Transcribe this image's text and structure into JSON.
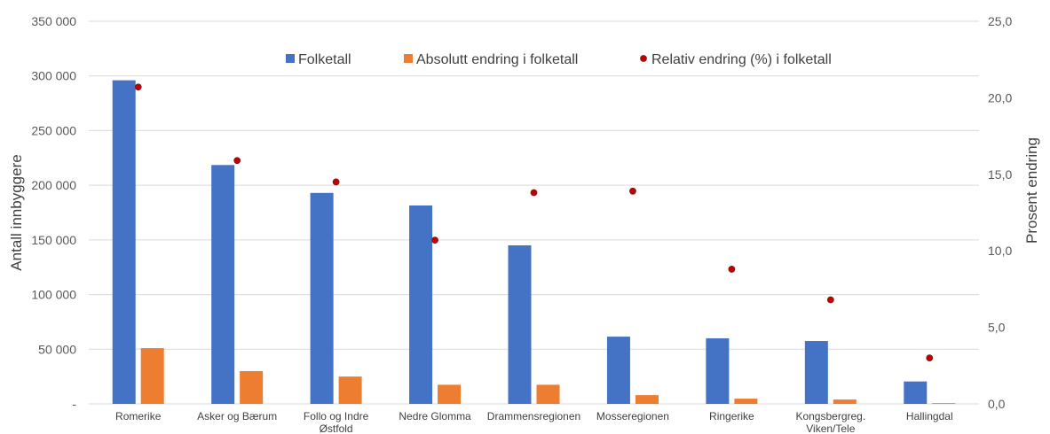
{
  "chart_data": {
    "type": "bar",
    "categories": [
      [
        "Romerike"
      ],
      [
        "Asker og Bærum"
      ],
      [
        "Follo og Indre",
        "Østfold"
      ],
      [
        "Nedre Glomma"
      ],
      [
        "Drammensregionen"
      ],
      [
        "Mosseregionen"
      ],
      [
        "Ringerike"
      ],
      [
        "Kongsbergreg.",
        "Viken/Tele"
      ],
      [
        "Hallingdal"
      ]
    ],
    "series": [
      {
        "name": "Folketall",
        "type": "bar",
        "axis": "left",
        "color": "#4472C4",
        "values": [
          296000,
          218500,
          193000,
          181500,
          145000,
          61500,
          60000,
          57500,
          20500
        ]
      },
      {
        "name": "Absolutt endring i folketall",
        "type": "bar",
        "axis": "left",
        "color": "#ED7D31",
        "values": [
          51000,
          30000,
          25000,
          17500,
          17500,
          8000,
          4800,
          4000,
          700
        ]
      },
      {
        "name": "Relativ endring (%) i folketall",
        "type": "scatter",
        "axis": "right",
        "color": "#C00000",
        "values": [
          20.7,
          15.9,
          14.5,
          10.7,
          13.8,
          13.9,
          8.8,
          6.8,
          3.0
        ]
      }
    ],
    "ylabel": "Antall innbyggere",
    "y2label": "Prosent  endring",
    "ylim": [
      0,
      350000
    ],
    "y2lim": [
      0,
      25
    ],
    "yticks": [
      "-",
      "50 000",
      "100 000",
      "150 000",
      "200 000",
      "250 000",
      "300 000",
      "350 000"
    ],
    "y2ticks": [
      "0,0",
      "5,0",
      "10,0",
      "15,0",
      "20,0",
      "25,0"
    ],
    "grid": true,
    "legend_position": "top"
  }
}
